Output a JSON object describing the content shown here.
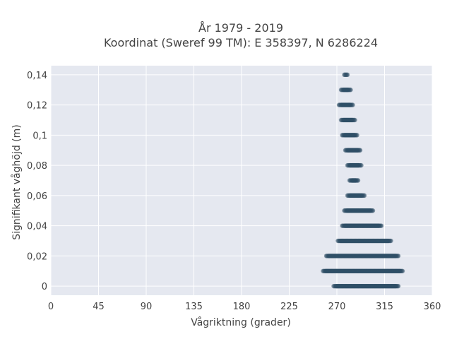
{
  "chart_data": {
    "type": "scatter",
    "title": "År 1979 - 2019",
    "subtitle": "Koordinat (Sweref 99 TM): E 358397, N 6286224",
    "xlabel": "Vågriktning (grader)",
    "ylabel": "Signifikant våghöjd (m)",
    "xlim": [
      0,
      360
    ],
    "ylim": [
      -0.006,
      0.146
    ],
    "xticks": [
      0,
      45,
      90,
      135,
      180,
      225,
      270,
      315,
      360
    ],
    "yticks": [
      0,
      0.02,
      0.04,
      0.06,
      0.08,
      0.1,
      0.12,
      0.14
    ],
    "ytick_labels": [
      "0",
      "0,02",
      "0,04",
      "0,06",
      "0,08",
      "0,1",
      "0,12",
      "0,14"
    ],
    "grid": true,
    "point_color": "#2f4f66",
    "background_color": "#e5e8f0",
    "bands": [
      {
        "y": 0.14,
        "x_min": 277,
        "x_max": 280
      },
      {
        "y": 0.13,
        "x_min": 274,
        "x_max": 283
      },
      {
        "y": 0.12,
        "x_min": 272,
        "x_max": 285
      },
      {
        "y": 0.11,
        "x_min": 274,
        "x_max": 287
      },
      {
        "y": 0.1,
        "x_min": 275,
        "x_max": 289
      },
      {
        "y": 0.09,
        "x_min": 278,
        "x_max": 292
      },
      {
        "y": 0.08,
        "x_min": 280,
        "x_max": 293
      },
      {
        "y": 0.07,
        "x_min": 282,
        "x_max": 290
      },
      {
        "y": 0.06,
        "x_min": 280,
        "x_max": 296
      },
      {
        "y": 0.05,
        "x_min": 277,
        "x_max": 304
      },
      {
        "y": 0.04,
        "x_min": 275,
        "x_max": 312
      },
      {
        "y": 0.03,
        "x_min": 271,
        "x_max": 321
      },
      {
        "y": 0.02,
        "x_min": 260,
        "x_max": 328
      },
      {
        "y": 0.01,
        "x_min": 257,
        "x_max": 332
      },
      {
        "y": 0.0,
        "x_min": 267,
        "x_max": 328
      }
    ]
  }
}
